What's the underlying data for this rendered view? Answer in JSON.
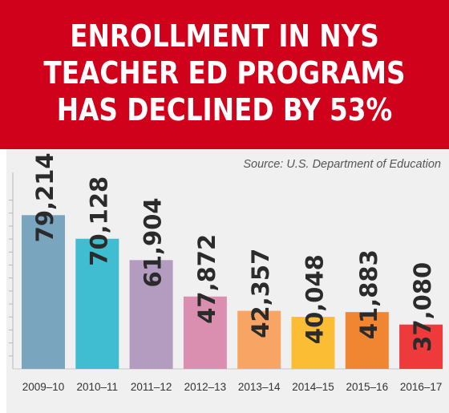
{
  "headline": {
    "line1": "ENROLLMENT IN NYS",
    "line2": "TEACHER ED PROGRAMS",
    "line3": "HAS DECLINED BY 53%"
  },
  "source": "Source: U.S. Department of Education",
  "colors": {
    "banner": "#d0021b",
    "plot_background": "#f0f0f0",
    "label_text": "#2b2b2b",
    "bars": [
      "#7aa5bf",
      "#40bdd1",
      "#b39cc0",
      "#da8fb0",
      "#f7a465",
      "#fbbd33",
      "#f08532",
      "#ee3a3a"
    ]
  },
  "chart_data": {
    "type": "bar",
    "title": "",
    "categories": [
      "2009–10",
      "2010–11",
      "2011–12",
      "2012–13",
      "2013–14",
      "2014–15",
      "2015–16",
      "2016–17"
    ],
    "values": [
      79214,
      70128,
      61904,
      47872,
      42357,
      40048,
      41883,
      37080
    ],
    "value_labels": [
      "79,214",
      "70,128",
      "61,904",
      "47,872",
      "42,357",
      "40,048",
      "41,883",
      "37,080"
    ],
    "xlabel": "",
    "ylabel": "",
    "ylim": [
      20000,
      100000
    ],
    "y_ticks_shown_as_marks": [
      25000,
      30000,
      35000,
      40000,
      45000,
      50000,
      55000,
      60000,
      65000,
      70000,
      75000,
      80000,
      85000
    ],
    "grid": false,
    "legend": "none"
  }
}
